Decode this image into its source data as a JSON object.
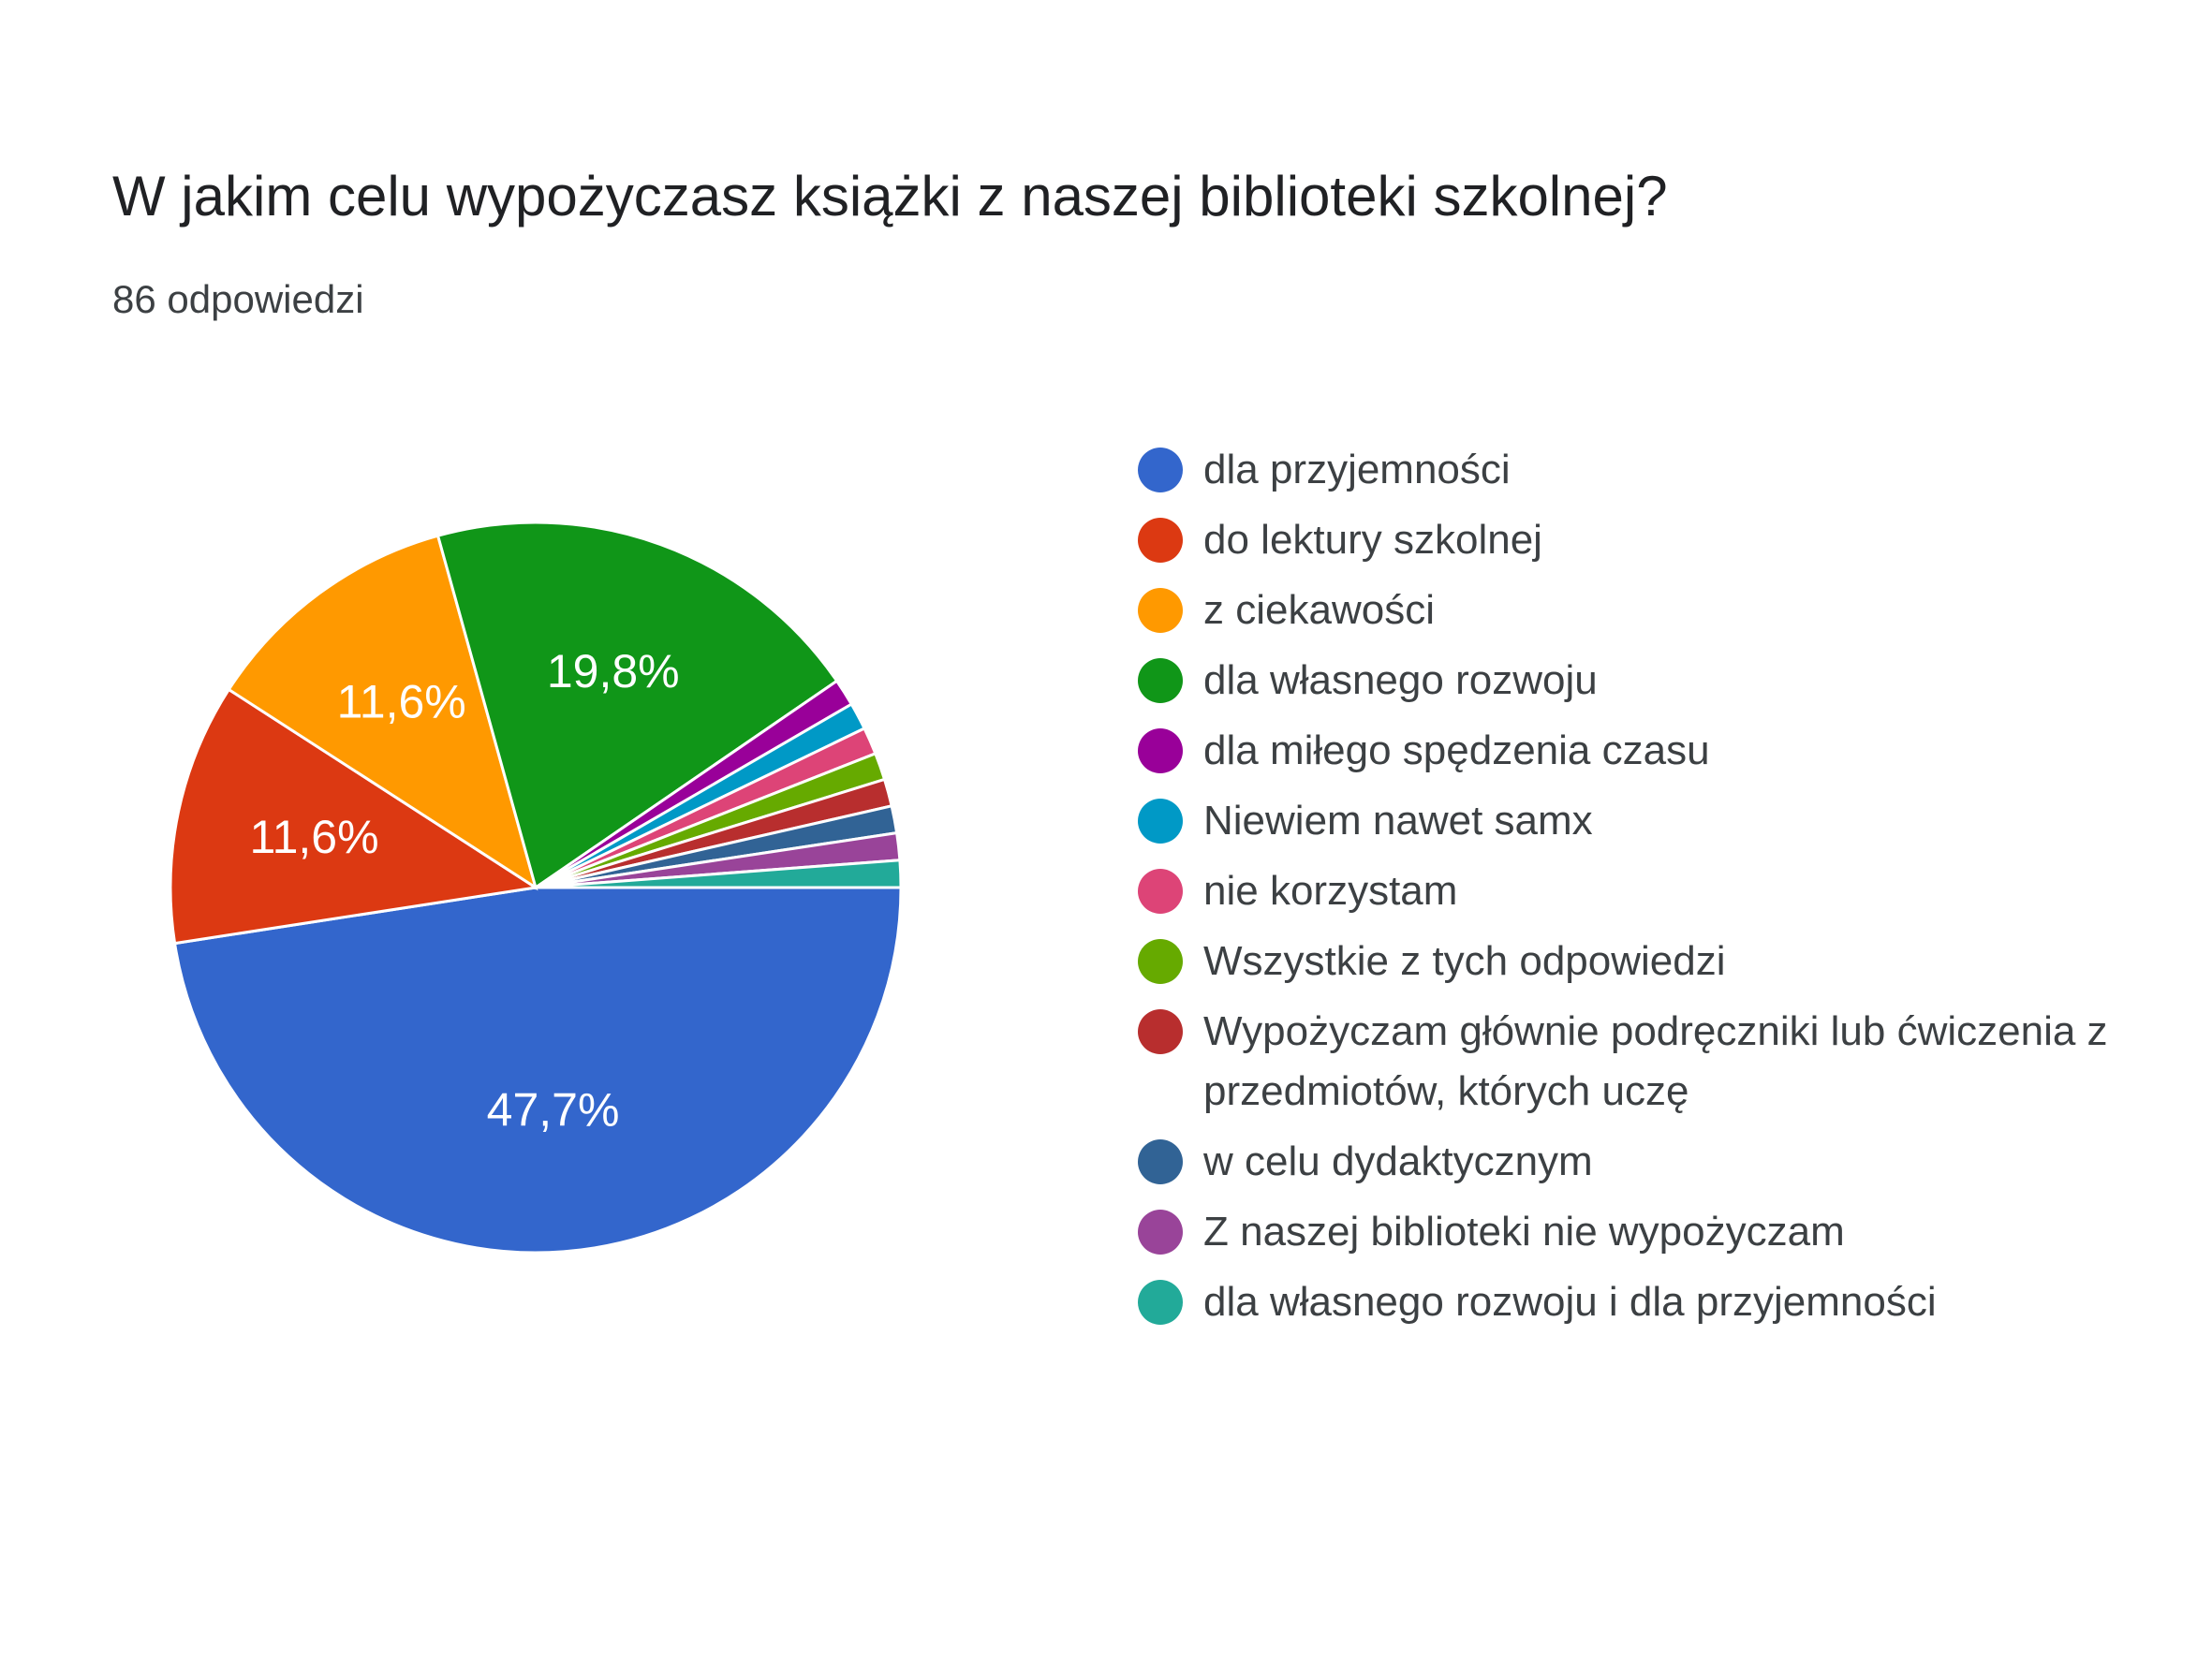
{
  "chart_data": {
    "type": "pie",
    "title": "W jakim celu wypożyczasz książki z naszej biblioteki szkolnej?",
    "subtitle": "86 odpowiedzi",
    "legend_position": "right",
    "slices": [
      {
        "label": "dla przyjemności",
        "value": 47.7,
        "display": "47,7%",
        "color": "#3366cc"
      },
      {
        "label": "do lektury szkolnej",
        "value": 11.6,
        "display": "11,6%",
        "color": "#dc3912"
      },
      {
        "label": "z ciekawości",
        "value": 11.6,
        "display": "11,6%",
        "color": "#ff9900"
      },
      {
        "label": "dla własnego rozwoju",
        "value": 19.8,
        "display": "19,8%",
        "color": "#109618"
      },
      {
        "label": "dla miłego spędzenia czasu",
        "value": 1.2,
        "display": "",
        "color": "#990099"
      },
      {
        "label": "Niewiem nawet samx",
        "value": 1.2,
        "display": "",
        "color": "#0099c6"
      },
      {
        "label": "nie korzystam",
        "value": 1.2,
        "display": "",
        "color": "#dd4477"
      },
      {
        "label": "Wszystkie z tych odpowiedzi",
        "value": 1.2,
        "display": "",
        "color": "#66aa00"
      },
      {
        "label": "Wypożyczam głównie podręczniki lub ćwiczenia z przedmiotów, których uczę",
        "value": 1.2,
        "display": "",
        "color": "#b82e2e"
      },
      {
        "label": "w celu dydaktycznym",
        "value": 1.2,
        "display": "",
        "color": "#316395"
      },
      {
        "label": "Z naszej biblioteki nie wypożyczam",
        "value": 1.2,
        "display": "",
        "color": "#994499"
      },
      {
        "label": "dla własnego rozwoju i dla przyjemności",
        "value": 1.2,
        "display": "",
        "color": "#22aa99"
      }
    ]
  }
}
